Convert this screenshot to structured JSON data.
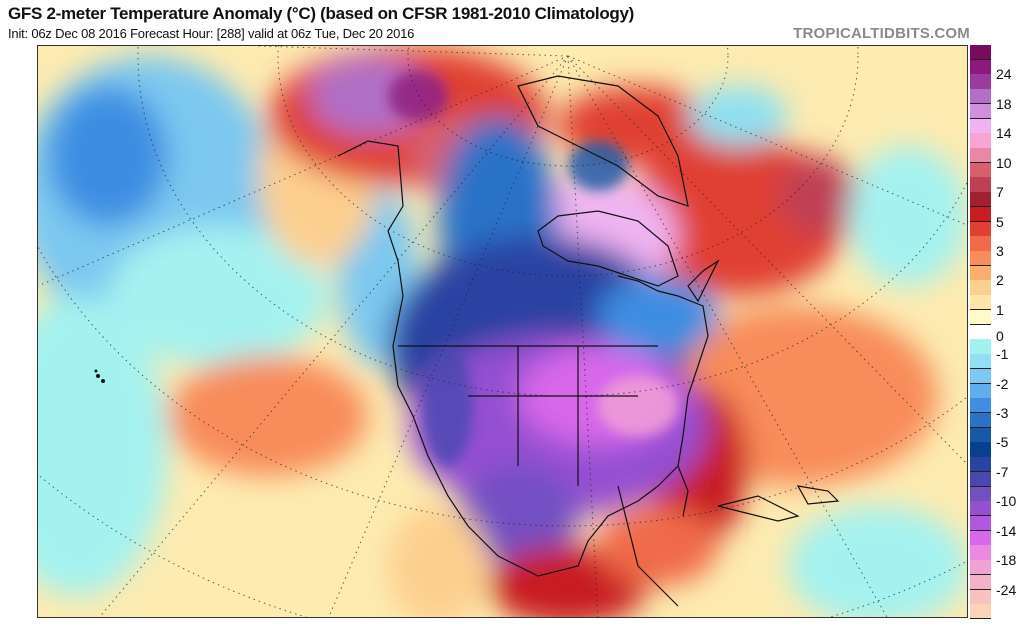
{
  "header": {
    "title": "GFS 2-meter Temperature Anomaly (°C) (based on CFSR 1981-2010 Climatology)",
    "subtitle": "Init: 06z Dec 08 2016   Forecast Hour: [288]   valid at 06z Tue, Dec 20 2016",
    "brand": "TROPICALTIDBITS.COM"
  },
  "colorbar": {
    "colors": [
      "#7a0a5c",
      "#8c1a7c",
      "#9a3c9e",
      "#b070c6",
      "#cf90de",
      "#f0b4f2",
      "#f8a4d4",
      "#e888a6",
      "#d8606e",
      "#bf3f55",
      "#a02232",
      "#c81e22",
      "#e04030",
      "#f06a48",
      "#f88c5a",
      "#fcae6c",
      "#fdcf8e",
      "#fde6a6",
      "#fffac8",
      "#ffffff",
      "#a4f2f0",
      "#8ee0f2",
      "#7cc8f0",
      "#60aef0",
      "#3e8ee2",
      "#2a72c8",
      "#1858a8",
      "#084090",
      "#2a42a2",
      "#4a48b0",
      "#7250c2",
      "#9450d2",
      "#b058e2",
      "#d868ea",
      "#e88ae0",
      "#f0a2d6",
      "#f2b2c8",
      "#f8c2c0",
      "#fcd2b8"
    ],
    "labels": [
      "24",
      "18",
      "14",
      "10",
      "7",
      "5",
      "3",
      "2",
      "1",
      "0",
      "-1",
      "-2",
      "-3",
      "-5",
      "-7",
      "-10",
      "-14",
      "-18",
      "-24"
    ]
  }
}
